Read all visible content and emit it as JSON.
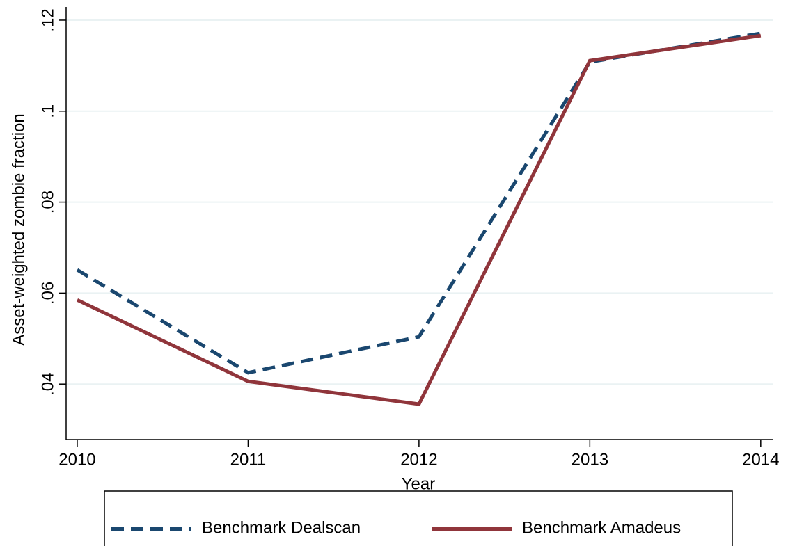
{
  "chart_data": {
    "type": "line",
    "x_label": "Year",
    "y_label": "Asset-weighted zombie fraction",
    "x": [
      2010,
      2011,
      2012,
      2013,
      2014
    ],
    "xlim": [
      2009.935,
      2014.07
    ],
    "xticks": [
      2010,
      2011,
      2012,
      2013,
      2014
    ],
    "ylim": [
      0.0278,
      0.1229
    ],
    "yticks": [
      {
        "value": 0.04,
        "label": ".04"
      },
      {
        "value": 0.06,
        "label": ".06"
      },
      {
        "value": 0.08,
        "label": ".08"
      },
      {
        "value": 0.1,
        "label": ".1"
      },
      {
        "value": 0.12,
        "label": ".12"
      }
    ],
    "grid": true,
    "legend": "bottom",
    "series": [
      {
        "name": "Benchmark Dealscan",
        "color": "#1a476f",
        "dash": true,
        "values": [
          0.0651,
          0.0425,
          0.0504,
          0.1108,
          0.1171
        ]
      },
      {
        "name": "Benchmark Amadeus",
        "color": "#90353b",
        "dash": false,
        "values": [
          0.0585,
          0.0406,
          0.0356,
          0.1111,
          0.1166
        ]
      }
    ]
  }
}
